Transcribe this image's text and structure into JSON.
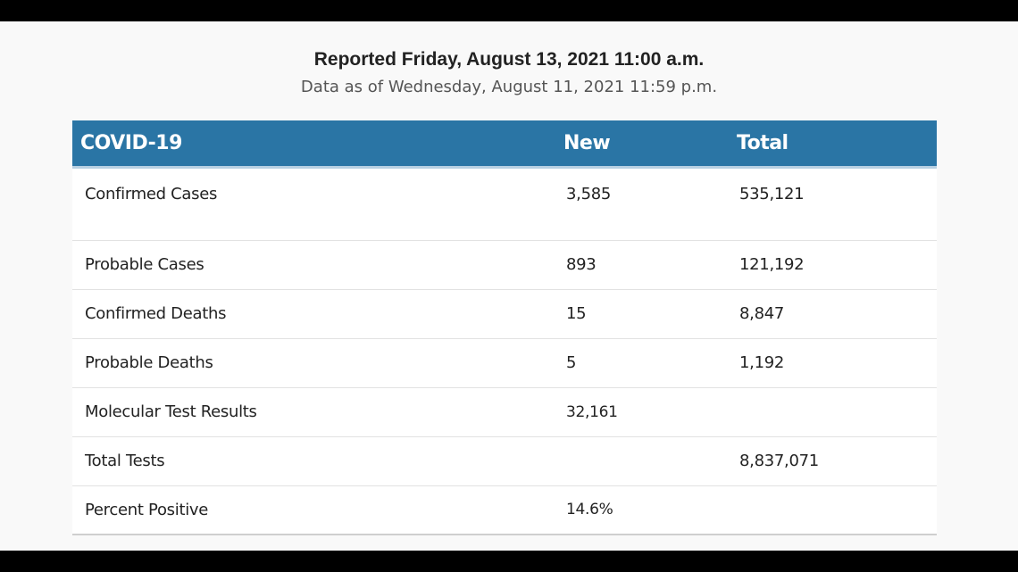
{
  "header": {
    "reported": "Reported Friday, August 13, 2021 11:00 a.m.",
    "data_as_of": "Data as of Wednesday, August 11, 2021 11:59 p.m."
  },
  "table": {
    "columns": [
      "COVID-19",
      "New",
      "Total"
    ],
    "rows": [
      {
        "label": "Confirmed Cases",
        "new": "3,585",
        "total": "535,121"
      },
      {
        "label": "Probable Cases",
        "new": "893",
        "total": "121,192"
      },
      {
        "label": "Confirmed Deaths",
        "new": "15",
        "total": "8,847"
      },
      {
        "label": "Probable Deaths",
        "new": "5",
        "total": "1,192"
      },
      {
        "label": "Molecular Test Results",
        "new": "32,161",
        "total": ""
      },
      {
        "label": "Total Tests",
        "new": "",
        "total": "8,837,071"
      },
      {
        "label": "Percent Positive",
        "new": "14.6%",
        "total": ""
      }
    ]
  },
  "colors": {
    "header_bg": "#2a75a5",
    "page_bg": "#f9f9f9",
    "letterbox": "#000000"
  }
}
